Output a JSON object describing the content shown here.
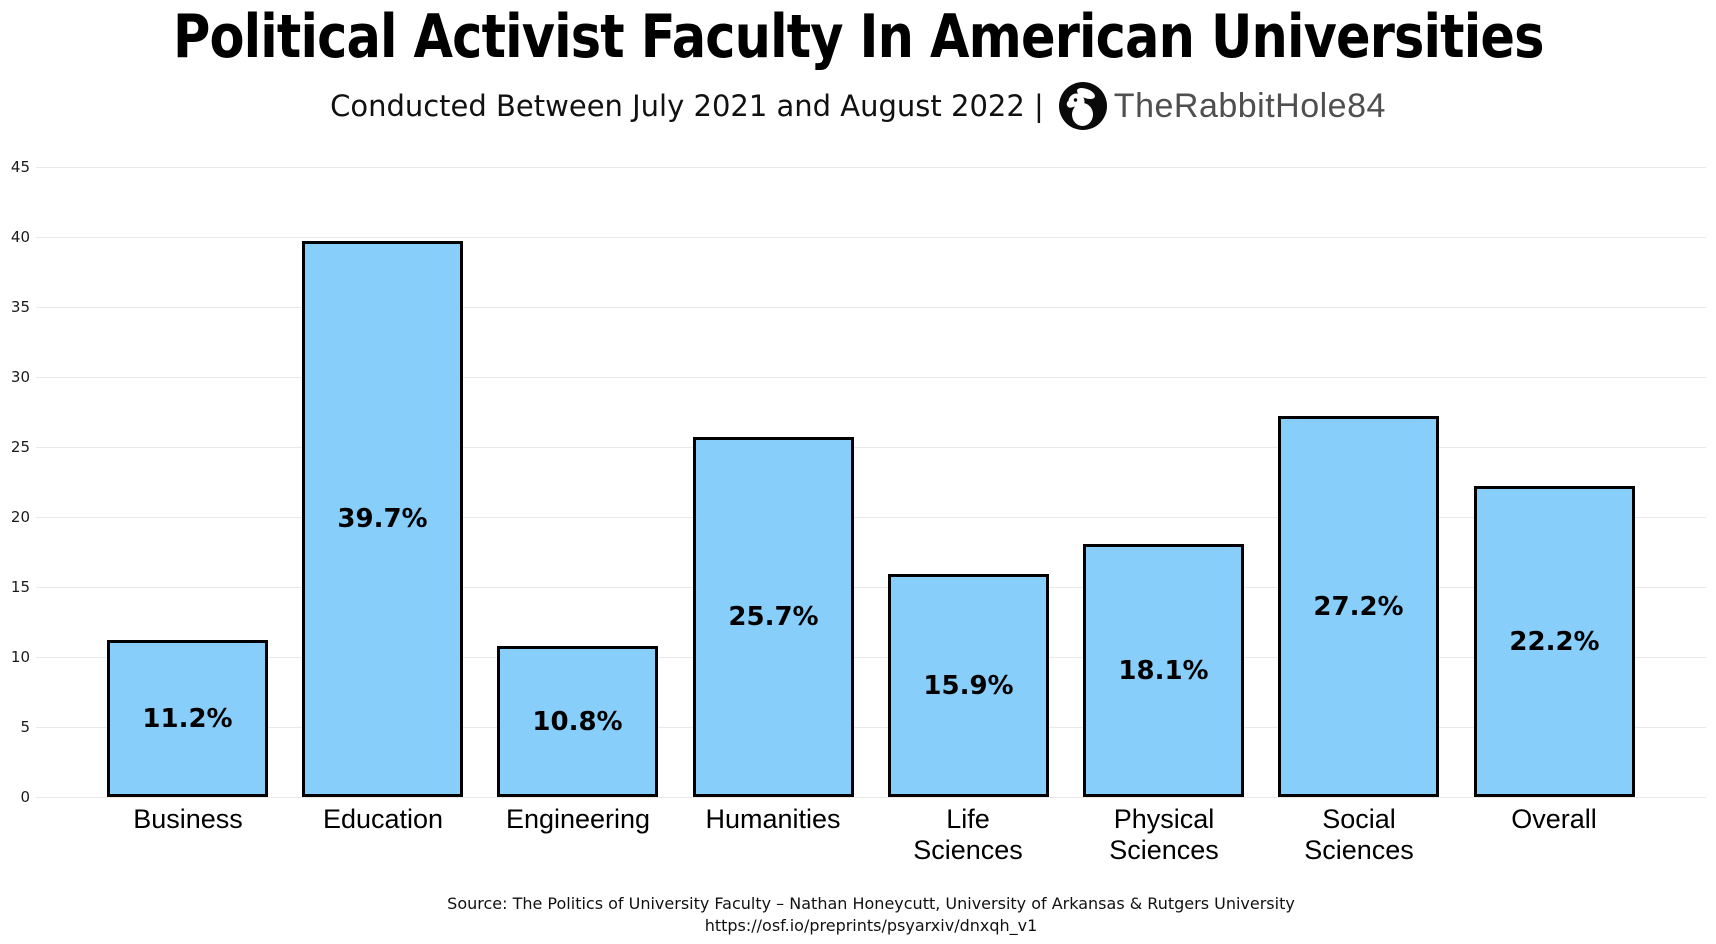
{
  "header": {
    "title": "Political Activist Faculty In American Universities",
    "subtitle_prefix": "Conducted Between July 2021 and August 2022 |",
    "brand": "TheRabbitHole84",
    "logo_icon": "rabbit-in-circle-icon"
  },
  "chart_data": {
    "type": "bar",
    "title": "Political Activist Faculty In American Universities",
    "subtitle": "Conducted Between July 2021 and August 2022 | TheRabbitHole84",
    "categories": [
      "Business",
      "Education",
      "Engineering",
      "Humanities",
      "Life\nSciences",
      "Physical\nSciences",
      "Social\nSciences",
      "Overall"
    ],
    "values": [
      11.2,
      39.7,
      10.8,
      25.7,
      15.9,
      18.1,
      27.2,
      22.2
    ],
    "value_labels": [
      "11.2%",
      "39.7%",
      "10.8%",
      "25.7%",
      "15.9%",
      "18.1%",
      "27.2%",
      "22.2%"
    ],
    "xlabel": "",
    "ylabel": "",
    "ylim": [
      0,
      45
    ],
    "ytick_step": 5,
    "yticks": [
      "0",
      "5",
      "10",
      "15",
      "20",
      "25",
      "30",
      "35",
      "40",
      "45"
    ],
    "grid": true,
    "legend": "none",
    "bar_color": "#87CEFA",
    "bar_border_color": "#000000",
    "gridline_color": "#e9e9e9"
  },
  "footer": {
    "source_line": "Source: The Politics of University Faculty – Nathan Honeycutt, University of Arkansas & Rutgers University",
    "url_line": "https://osf.io/preprints/psyarxiv/dnxqh_v1"
  }
}
